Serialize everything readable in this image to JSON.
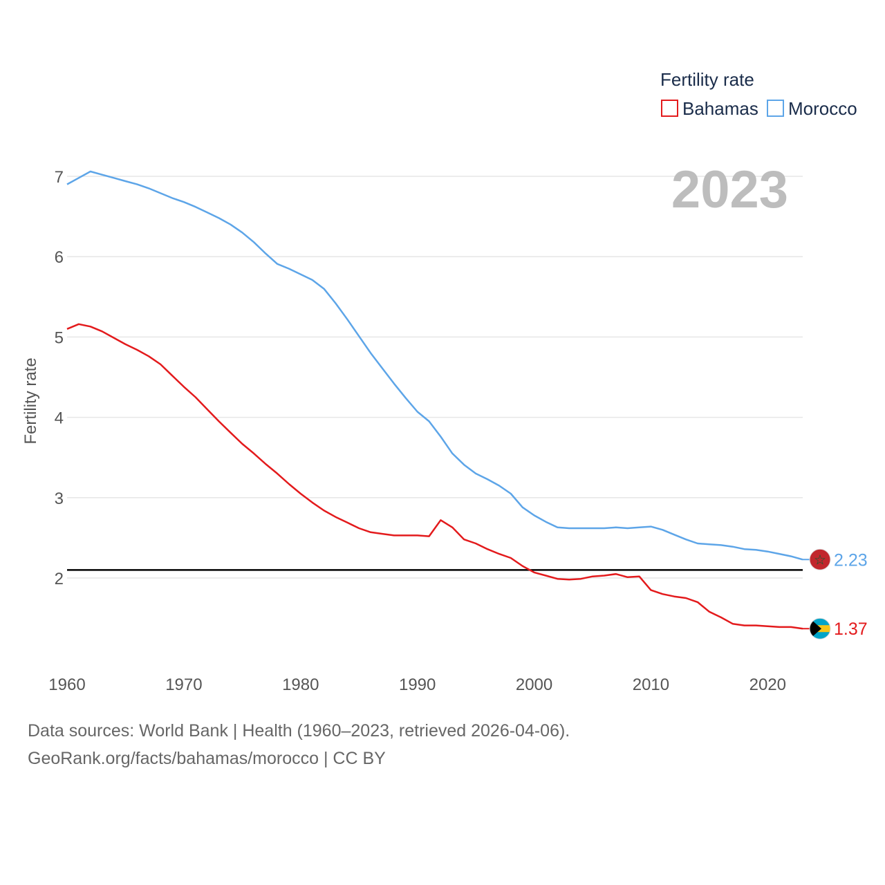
{
  "chart_data": {
    "type": "line",
    "legend_title": "Fertility rate",
    "legend_position": "top-right",
    "current_year_label": "2023",
    "ylabel": "Fertility rate",
    "xlabel": "",
    "xlim": [
      1960,
      2023
    ],
    "ylim": [
      1.0,
      7.3
    ],
    "x_ticks": [
      1960,
      1970,
      1980,
      1990,
      2000,
      2010,
      2020
    ],
    "x_tick_labels": [
      "1960",
      "1970",
      "1980",
      "1990",
      "2000",
      "2010",
      "2020"
    ],
    "y_ticks": [
      2,
      3,
      4,
      5,
      6,
      7
    ],
    "y_tick_labels": [
      "2",
      "3",
      "4",
      "5",
      "6",
      "7"
    ],
    "grid": true,
    "reference_line": {
      "y": 2.1,
      "color": "#000000"
    },
    "years": [
      1960,
      1961,
      1962,
      1963,
      1964,
      1965,
      1966,
      1967,
      1968,
      1969,
      1970,
      1971,
      1972,
      1973,
      1974,
      1975,
      1976,
      1977,
      1978,
      1979,
      1980,
      1981,
      1982,
      1983,
      1984,
      1985,
      1986,
      1987,
      1988,
      1989,
      1990,
      1991,
      1992,
      1993,
      1994,
      1995,
      1996,
      1997,
      1998,
      1999,
      2000,
      2001,
      2002,
      2003,
      2004,
      2005,
      2006,
      2007,
      2008,
      2009,
      2010,
      2011,
      2012,
      2013,
      2014,
      2015,
      2016,
      2017,
      2018,
      2019,
      2020,
      2021,
      2022,
      2023
    ],
    "series": [
      {
        "name": "Bahamas",
        "color": "#e31a1c",
        "end_label": "1.37",
        "flag": "bahamas-flag-icon",
        "values": [
          5.1,
          5.16,
          5.13,
          5.07,
          4.99,
          4.91,
          4.84,
          4.76,
          4.66,
          4.52,
          4.38,
          4.25,
          4.1,
          3.95,
          3.81,
          3.67,
          3.55,
          3.42,
          3.3,
          3.17,
          3.05,
          2.94,
          2.84,
          2.76,
          2.69,
          2.62,
          2.57,
          2.55,
          2.53,
          2.53,
          2.53,
          2.52,
          2.72,
          2.63,
          2.48,
          2.43,
          2.36,
          2.3,
          2.25,
          2.15,
          2.07,
          2.03,
          1.99,
          1.98,
          1.99,
          2.02,
          2.03,
          2.05,
          2.01,
          2.02,
          1.85,
          1.8,
          1.77,
          1.75,
          1.7,
          1.58,
          1.51,
          1.43,
          1.41,
          1.41,
          1.4,
          1.39,
          1.39,
          1.37
        ]
      },
      {
        "name": "Morocco",
        "color": "#5da5e8",
        "end_label": "2.23",
        "flag": "morocco-flag-icon",
        "values": [
          6.9,
          6.98,
          7.06,
          7.02,
          6.98,
          6.94,
          6.9,
          6.85,
          6.79,
          6.73,
          6.68,
          6.62,
          6.55,
          6.48,
          6.4,
          6.3,
          6.18,
          6.04,
          5.91,
          5.85,
          5.78,
          5.71,
          5.6,
          5.42,
          5.22,
          5.01,
          4.8,
          4.61,
          4.42,
          4.24,
          4.07,
          3.95,
          3.76,
          3.55,
          3.41,
          3.3,
          3.23,
          3.15,
          3.05,
          2.88,
          2.78,
          2.7,
          2.63,
          2.62,
          2.62,
          2.62,
          2.62,
          2.63,
          2.62,
          2.63,
          2.64,
          2.6,
          2.54,
          2.48,
          2.43,
          2.42,
          2.41,
          2.39,
          2.36,
          2.35,
          2.33,
          2.3,
          2.27,
          2.23
        ]
      }
    ]
  },
  "footer": {
    "line1": "Data sources: World Bank | Health (1960–2023, retrieved 2026-04-06).",
    "line2": "GeoRank.org/facts/bahamas/morocco | CC BY"
  }
}
